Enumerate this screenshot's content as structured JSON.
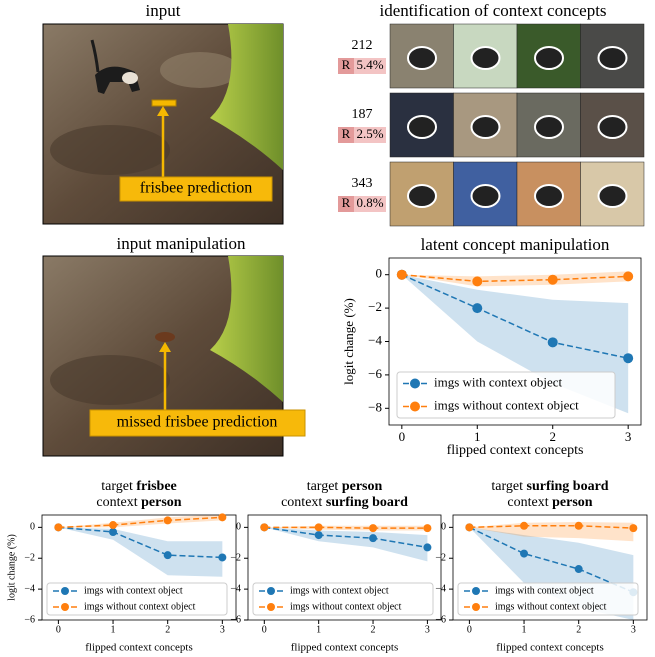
{
  "panels": {
    "input": {
      "title": "input",
      "annotation": "frisbee prediction"
    },
    "manipulation": {
      "title": "input manipulation",
      "annotation": "missed frisbee prediction"
    },
    "concepts": {
      "title": "identification of context concepts",
      "rows": [
        {
          "id": "212",
          "badge": "R",
          "relevance": "5.4%"
        },
        {
          "id": "187",
          "badge": "R",
          "relevance": "2.5%"
        },
        {
          "id": "343",
          "badge": "R",
          "relevance": "0.8%"
        }
      ]
    }
  },
  "chart_data": [
    {
      "type": "line",
      "title": "latent concept manipulation",
      "xlabel": "flipped context concepts",
      "ylabel": "logit change (%)",
      "x": [
        0,
        1,
        2,
        3
      ],
      "xlim": [
        -0.17,
        3.17
      ],
      "xticks": [
        0,
        1,
        2,
        3
      ],
      "ylim": [
        -9,
        1
      ],
      "yticks": [
        0,
        {
          "value": -2,
          "label": "−2"
        },
        {
          "value": -4,
          "label": "−4"
        },
        {
          "value": -6,
          "label": "−6"
        },
        {
          "value": -8,
          "label": "−8"
        }
      ],
      "legend": "lower center",
      "series": [
        {
          "name": "imgs with context object",
          "color": "#1f77b4",
          "values": [
            0,
            -2,
            -4.05,
            -5
          ],
          "lower": [
            0,
            -4,
            -6.5,
            -8.3
          ],
          "upper": [
            0,
            -0.9,
            -1.5,
            -1.7
          ]
        },
        {
          "name": "imgs without context object",
          "color": "#ff7f0e",
          "values": [
            0,
            -0.4,
            -0.3,
            -0.1
          ],
          "lower": [
            0,
            -0.7,
            -0.6,
            -0.4
          ],
          "upper": [
            0,
            -0.1,
            0,
            0.2
          ]
        }
      ]
    },
    {
      "type": "line",
      "title_lines": [
        {
          "prefix": "target",
          "bold": "frisbee"
        },
        {
          "prefix": "context",
          "bold": "person"
        }
      ],
      "xlabel": "flipped context concepts",
      "ylabel": "logit change (%)",
      "x": [
        0,
        1,
        2,
        3
      ],
      "xlim": [
        -0.3,
        3.25
      ],
      "xticks": [
        0,
        1,
        2,
        3
      ],
      "ylim": [
        -6,
        0.8
      ],
      "yticks": [
        0,
        {
          "value": -2,
          "label": "−2"
        },
        {
          "value": -4,
          "label": "−4"
        },
        {
          "value": -6,
          "label": "−6"
        }
      ],
      "legend": "lower left",
      "series": [
        {
          "name": "imgs with context object",
          "color": "#1f77b4",
          "values": [
            0,
            -0.3,
            -1.8,
            -1.95
          ],
          "lower": [
            0,
            -0.8,
            -3.1,
            -3.2
          ],
          "upper": [
            0,
            -0.1,
            -0.9,
            -0.9
          ]
        },
        {
          "name": "imgs without context object",
          "color": "#ff7f0e",
          "values": [
            0,
            0.15,
            0.45,
            0.65
          ],
          "lower": [
            0,
            0,
            0.25,
            0.45
          ],
          "upper": [
            0,
            0.3,
            0.65,
            0.85
          ]
        }
      ]
    },
    {
      "type": "line",
      "title_lines": [
        {
          "prefix": "target",
          "bold": "person"
        },
        {
          "prefix": "context",
          "bold": "surfing board"
        }
      ],
      "xlabel": "flipped context concepts",
      "x": [
        0,
        1,
        2,
        3
      ],
      "xlim": [
        -0.3,
        3.25
      ],
      "xticks": [
        0,
        1,
        2,
        3
      ],
      "ylim": [
        -6,
        0.8
      ],
      "yticks": [
        0,
        {
          "value": -2,
          "label": "−2"
        },
        {
          "value": -4,
          "label": "−4"
        },
        {
          "value": -6,
          "label": "−6"
        }
      ],
      "legend": "lower left",
      "series": [
        {
          "name": "imgs with context object",
          "color": "#1f77b4",
          "values": [
            0,
            -0.5,
            -0.7,
            -1.3
          ],
          "lower": [
            0,
            -0.9,
            -1.3,
            -2.2
          ],
          "upper": [
            0,
            -0.2,
            -0.3,
            -0.5
          ]
        },
        {
          "name": "imgs without context object",
          "color": "#ff7f0e",
          "values": [
            0,
            0,
            -0.05,
            -0.05
          ],
          "lower": [
            0,
            -0.15,
            -0.2,
            -0.2
          ],
          "upper": [
            0,
            0.1,
            0.1,
            0.1
          ]
        }
      ]
    },
    {
      "type": "line",
      "title_lines": [
        {
          "prefix": "target",
          "bold": "surfing board"
        },
        {
          "prefix": "context",
          "bold": "person"
        }
      ],
      "xlabel": "flipped context concepts",
      "x": [
        0,
        1,
        2,
        3
      ],
      "xlim": [
        -0.3,
        3.25
      ],
      "xticks": [
        0,
        1,
        2,
        3
      ],
      "ylim": [
        -6,
        0.8
      ],
      "yticks": [
        0,
        {
          "value": -2,
          "label": "−2"
        },
        {
          "value": -4,
          "label": "−4"
        },
        {
          "value": -6,
          "label": "−6"
        }
      ],
      "legend": "lower left",
      "series": [
        {
          "name": "imgs with context object",
          "color": "#1f77b4",
          "values": [
            0,
            -1.7,
            -2.7,
            -4.2
          ],
          "lower": [
            0,
            -3.6,
            -5.2,
            -6
          ],
          "upper": [
            0,
            -0.5,
            -1,
            -1.8
          ]
        },
        {
          "name": "imgs without context object",
          "color": "#ff7f0e",
          "values": [
            0,
            0.1,
            0.1,
            -0.05
          ],
          "lower": [
            0,
            -0.6,
            -0.7,
            -0.9
          ],
          "upper": [
            0,
            0.3,
            0.35,
            0.3
          ]
        }
      ]
    }
  ]
}
